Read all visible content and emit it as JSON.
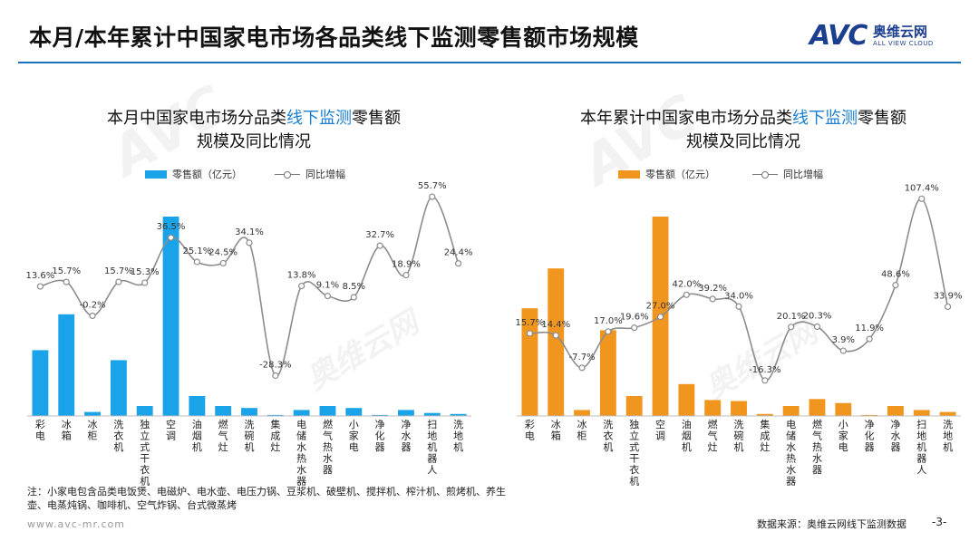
{
  "page": {
    "title": "本月/本年累计中国家电市场各品类线下监测零售额市场规模",
    "logo_mark": "AVC",
    "logo_cn": "奥维云网",
    "logo_en": "ALL VIEW CLOUD",
    "watermark_cn": "奥维云网",
    "watermark_en": "ALL VIEW CLOUD",
    "note": "注：小家电包含品类电饭煲、电磁炉、电水壶、电压力锅、豆浆机、破壁机、搅拌机、榨汁机、煎烤机、养生壶、电蒸炖锅、咖啡机、空气炸锅、台式微蒸烤",
    "url": "www.avc-mr.com",
    "source": "数据来源：奥维云网线下监测数据",
    "page_number": "-3-"
  },
  "colors": {
    "accent": "#1a7fd0",
    "rule": "#1a6fb8",
    "brand": "#1d3f8f"
  },
  "chart_data": [
    {
      "type": "bar",
      "title_pre": "本月中国家电市场分品类",
      "title_hl": "线下监测",
      "title_post": "零售额",
      "title_line2": "规模及同比情况",
      "bar_legend": "零售额（亿元）",
      "line_legend": "同比增幅",
      "bar_color": "#1aa3e8",
      "categories": [
        "彩电",
        "冰箱",
        "冰柜",
        "洗衣机",
        "独立式干衣机",
        "空调",
        "油烟机",
        "燃气灶",
        "洗碗机",
        "集成灶",
        "电储水热水器",
        "燃气热水器",
        "小家电",
        "净化器",
        "净水器",
        "扫地机器人",
        "洗地机"
      ],
      "series": [
        {
          "name": "零售额（亿元）",
          "kind": "bar",
          "values": [
            33,
            51,
            2,
            28,
            5,
            100,
            10,
            5,
            4,
            0.5,
            3,
            5,
            4,
            0.5,
            3,
            1.5,
            1
          ]
        },
        {
          "name": "同比增幅",
          "kind": "line",
          "values": [
            13.6,
            15.7,
            -0.2,
            15.7,
            15.3,
            36.5,
            25.1,
            24.5,
            34.1,
            -28.3,
            13.8,
            9.1,
            8.5,
            32.7,
            18.9,
            55.7,
            24.4
          ],
          "labels": [
            "13.6%",
            "15.7%",
            "-0.2%",
            "15.7%",
            "15.3%",
            "36.5%",
            "25.1%",
            "24.5%",
            "34.1%",
            "-28.3%",
            "13.8%",
            "9.1%",
            "8.5%",
            "32.7%",
            "18.9%",
            "55.7%",
            "24.4%"
          ]
        }
      ],
      "bar_ylim": [
        0,
        100
      ],
      "line_ylim": [
        -40,
        60
      ],
      "legend_position": "top",
      "grid": false
    },
    {
      "type": "bar",
      "title_pre": "本年累计中国家电市场分品类",
      "title_hl": "线下监测",
      "title_post": "零售额",
      "title_line2": "规模及同比情况",
      "bar_legend": "零售额（亿元）",
      "line_legend": "同比增幅",
      "bar_color": "#f0961e",
      "categories": [
        "彩电",
        "冰箱",
        "冰柜",
        "洗衣机",
        "独立式干衣机",
        "空调",
        "油烟机",
        "燃气灶",
        "洗碗机",
        "集成灶",
        "电储水热水器",
        "燃气热水器",
        "小家电",
        "净化器",
        "净水器",
        "扫地机器人",
        "洗地机"
      ],
      "series": [
        {
          "name": "零售额（亿元）",
          "kind": "bar",
          "values": [
            54,
            74,
            3,
            43,
            10,
            100,
            16,
            8,
            7.5,
            1,
            5,
            8.5,
            6.5,
            0.5,
            5,
            3,
            2
          ]
        },
        {
          "name": "同比增幅",
          "kind": "line",
          "values": [
            15.7,
            14.4,
            -7.7,
            17.0,
            19.6,
            27.0,
            42.0,
            39.2,
            34.0,
            -16.3,
            20.1,
            20.3,
            3.9,
            11.9,
            48.6,
            107.4,
            33.9
          ],
          "labels": [
            "15.7%",
            "14.4%",
            "-7.7%",
            "17.0%",
            "19.6%",
            "27.0%",
            "42.0%",
            "39.2%",
            "34.0%",
            "-16.3%",
            "20.1%",
            "20.3%",
            "3.9%",
            "11.9%",
            "48.6%",
            "107.4%",
            "33.9%"
          ]
        }
      ],
      "bar_ylim": [
        0,
        100
      ],
      "line_ylim": [
        -30,
        115
      ],
      "legend_position": "top",
      "grid": false
    }
  ]
}
